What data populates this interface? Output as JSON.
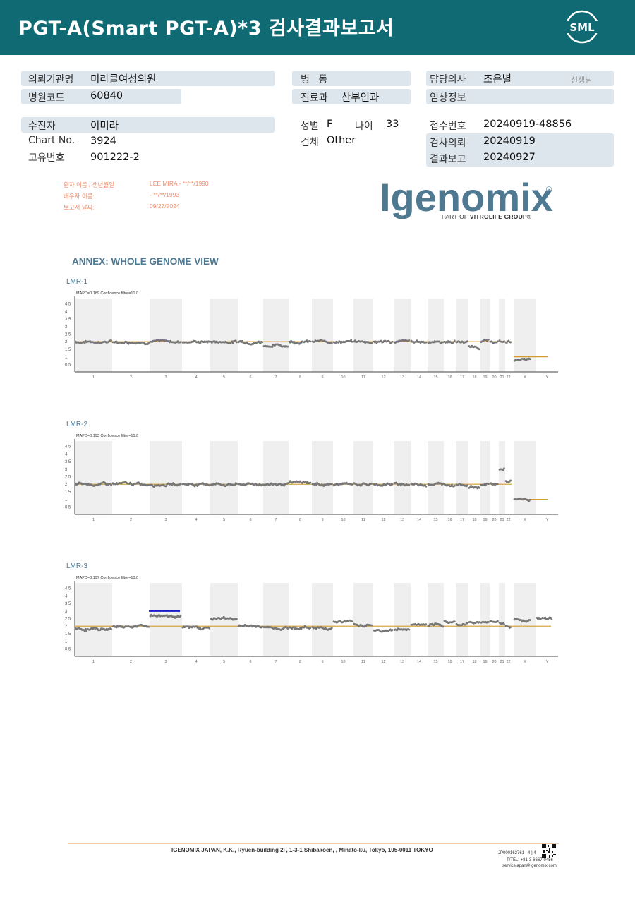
{
  "header": {
    "title": "PGT-A(Smart  PGT-A)*3 검사결과보고서",
    "logo_text": "SML"
  },
  "info": {
    "institution_label": "의뢰기관명",
    "institution_value": "미라클여성의원",
    "hospital_code_label": "병원코드",
    "hospital_code_value": "60840",
    "ward_label": "병 동",
    "ward_value": "",
    "department_label": "진료과",
    "department_value": "산부인과",
    "doctor_label": "담당의사",
    "doctor_value": "조은별",
    "doctor_suffix": "선생님",
    "clinical_label": "임상정보",
    "clinical_value": "",
    "patient_label": "수진자",
    "patient_value": "이미라",
    "chart_label": "Chart No.",
    "chart_value": "3924",
    "unique_label": "고유번호",
    "unique_value": "901222-2",
    "sex_label": "성별",
    "sex_value": "F",
    "age_label": "나이",
    "age_value": "33",
    "specimen_label": "검체",
    "specimen_value": "Other",
    "receipt_label": "접수번호",
    "receipt_value": "20240919-48856",
    "request_label": "검사의뢰",
    "request_value": "20240919",
    "report_label": "결과보고",
    "report_value": "20240927"
  },
  "stamp": {
    "line1_label": "환자 이름 / 생년월일",
    "line1_value": "LEE MIRA - **/**/1990",
    "line2_label": "배우자 이름:",
    "line2_value": " - **/**/1993",
    "line3_label": "보고서 날짜:",
    "line3_value": "09/27/2024"
  },
  "brand": {
    "name": "Igenomix",
    "registered": "®",
    "sub_prefix": "PART OF ",
    "sub_bold": "VITROLIFE GROUP",
    "sub_suffix": "®"
  },
  "annex_title": "ANNEX: WHOLE GENOME VIEW",
  "chart_data": [
    {
      "type": "scatter",
      "title": "LMR-1",
      "subtitle": "MAPD=0.189 Confidence filter=10.0",
      "y_ticks": [
        "4.5",
        "4",
        "3.5",
        "3",
        "2.5",
        "2",
        "1.5",
        "1",
        "0.5"
      ],
      "ylim": [
        0,
        5
      ],
      "x_tick_labels": [
        "1",
        "2",
        "3",
        "4",
        "5",
        "6",
        "7",
        "8",
        "9",
        "10",
        "11",
        "12",
        "13",
        "14",
        "15",
        "16",
        "17",
        "18",
        "19",
        "20",
        "21",
        "22",
        "X",
        "Y"
      ],
      "reference_line": [
        {
          "segment": "autosomes",
          "value": 2
        },
        {
          "segment": "X-Y",
          "value": 1
        }
      ],
      "chromosome_levels": [
        2.0,
        2.0,
        2.0,
        2.0,
        2.0,
        2.0,
        1.75,
        2.0,
        2.0,
        2.0,
        2.0,
        2.0,
        2.0,
        2.0,
        2.0,
        2.0,
        2.0,
        1.65,
        2.0,
        2.0,
        2.0,
        2.0,
        0.8,
        null
      ],
      "highlight": null
    },
    {
      "type": "scatter",
      "title": "LMR-2",
      "subtitle": "MAPD=0.193 Confidence filter=10.0",
      "y_ticks": [
        "4.5",
        "4",
        "3.5",
        "3",
        "2.5",
        "2",
        "1.5",
        "1",
        "0.5"
      ],
      "ylim": [
        0,
        5
      ],
      "x_tick_labels": [
        "1",
        "2",
        "3",
        "4",
        "5",
        "6",
        "7",
        "8",
        "9",
        "10",
        "11",
        "12",
        "13",
        "14",
        "15",
        "16",
        "17",
        "18",
        "19",
        "20",
        "21",
        "22",
        "X",
        "Y"
      ],
      "reference_line": [
        {
          "segment": "autosomes",
          "value": 2
        },
        {
          "segment": "X-Y",
          "value": 1
        }
      ],
      "chromosome_levels": [
        2.0,
        2.0,
        2.0,
        2.0,
        2.0,
        2.0,
        2.0,
        2.1,
        2.0,
        2.0,
        2.0,
        2.0,
        2.0,
        2.0,
        2.0,
        2.0,
        2.0,
        1.8,
        2.0,
        2.0,
        3.0,
        2.2,
        0.95,
        null
      ],
      "highlight": null
    },
    {
      "type": "scatter",
      "title": "LMR-3",
      "subtitle": "MAPD=0.197 Confidence filter=10.0",
      "y_ticks": [
        "4.5",
        "4",
        "3.5",
        "3",
        "2.5",
        "2",
        "1.5",
        "1",
        "0.5"
      ],
      "ylim": [
        0,
        5
      ],
      "x_tick_labels": [
        "1",
        "2",
        "3",
        "4",
        "5",
        "6",
        "7",
        "8",
        "9",
        "10",
        "11",
        "12",
        "13",
        "14",
        "15",
        "16",
        "17",
        "18",
        "19",
        "20",
        "21",
        "22",
        "X",
        "Y"
      ],
      "reference_line": [
        {
          "segment": "all",
          "value": 2
        }
      ],
      "chromosome_levels": [
        1.8,
        2.0,
        2.7,
        1.9,
        2.5,
        2.0,
        1.9,
        1.9,
        1.9,
        2.3,
        2.1,
        1.7,
        1.8,
        2.1,
        2.0,
        2.3,
        2.1,
        2.3,
        2.3,
        2.3,
        2.2,
        2.0,
        2.4,
        2.5
      ],
      "highlight": {
        "chromosome": "3",
        "value": 3.0
      }
    }
  ],
  "footer": {
    "address": "IGENOMIX JAPAN, K.K., Ryuen-building 2F, 1-3-1 Shibakōen, , Minato-ku, Tokyo, 105-0011 TOKYO",
    "code": "JP000162761",
    "page": "4 | 4",
    "tel": "T/TEL: +81-3-6667-0456 -",
    "email": "servicejapan@igenomix.com"
  },
  "colors": {
    "header": "#0f6a74",
    "info_bar": "#dde6ed",
    "brand": "#4f7891",
    "stamp": "#f08d6a",
    "data_points": "#777777",
    "reference": "#d39b2f",
    "highlight": "#1a1acc"
  }
}
